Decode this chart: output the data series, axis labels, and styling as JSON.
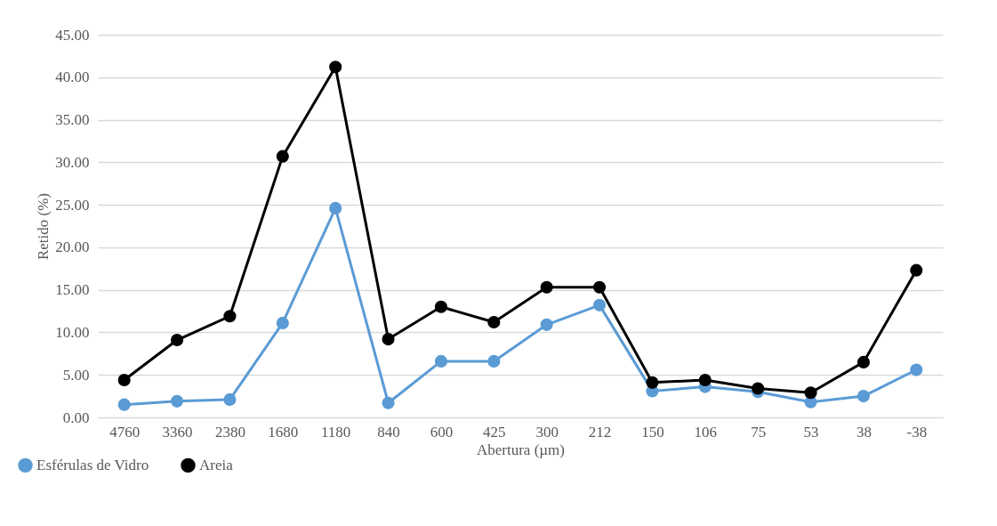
{
  "chart_data": {
    "type": "line",
    "xlabel": "Abertura (µm)",
    "ylabel": "Retido (%)",
    "categories": [
      "4760",
      "3360",
      "2380",
      "1680",
      "1180",
      "840",
      "600",
      "425",
      "300",
      "212",
      "150",
      "106",
      "75",
      "53",
      "38",
      "-38"
    ],
    "series": [
      {
        "name": "Esférulas de Vidro",
        "color": "#5b9bd5",
        "values": [
          1.5,
          1.9,
          2.1,
          11.1,
          24.6,
          1.7,
          6.6,
          6.6,
          10.9,
          13.2,
          3.1,
          3.6,
          3.0,
          1.8,
          2.5,
          5.6
        ]
      },
      {
        "name": "Areia",
        "color": "#000000",
        "values": [
          4.4,
          9.1,
          11.9,
          30.7,
          41.2,
          9.2,
          13.0,
          11.2,
          15.3,
          15.3,
          4.1,
          4.4,
          3.4,
          2.9,
          6.5,
          17.3
        ]
      }
    ],
    "ylim": [
      0,
      45
    ],
    "yticks": [
      {
        "value": 0,
        "label": "0.00"
      },
      {
        "value": 5,
        "label": "5.00"
      },
      {
        "value": 10,
        "label": "10.00"
      },
      {
        "value": 15,
        "label": "15.00"
      },
      {
        "value": 20,
        "label": "20.00"
      },
      {
        "value": 25,
        "label": "25.00"
      },
      {
        "value": 30,
        "label": "30.00"
      },
      {
        "value": 35,
        "label": "35.00"
      },
      {
        "value": 40,
        "label": "40.00"
      },
      {
        "value": 45,
        "label": "45.00"
      }
    ],
    "grid": "y",
    "legend": "bottom left",
    "marker": "circle",
    "line_style": "solid"
  }
}
